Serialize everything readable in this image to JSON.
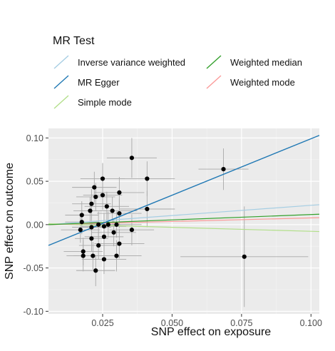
{
  "chart_data": {
    "type": "scatter",
    "legend": {
      "title": "MR Test",
      "placement": "top",
      "entries": [
        {
          "label": "Inverse variance weighted",
          "color": "#a6cee3"
        },
        {
          "label": "MR Egger",
          "color": "#1f78b4"
        },
        {
          "label": "Simple mode",
          "color": "#b2df8a"
        },
        {
          "label": "Weighted median",
          "color": "#33a02c"
        },
        {
          "label": "Weighted mode",
          "color": "#fb9a99"
        }
      ]
    },
    "xlabel": "SNP effect on exposure",
    "ylabel": "SNP effect on outcome",
    "xlim": [
      0.0055,
      0.103
    ],
    "ylim": [
      -0.103,
      0.111
    ],
    "x_ticks": [
      {
        "value": 0.025,
        "label": "0.025"
      },
      {
        "value": 0.05,
        "label": "0.050"
      },
      {
        "value": 0.075,
        "label": "0.075"
      },
      {
        "value": 0.1,
        "label": "0.100"
      }
    ],
    "y_ticks": [
      {
        "value": 0.1,
        "label": "0.10"
      },
      {
        "value": 0.05,
        "label": "0.05"
      },
      {
        "value": 0.0,
        "label": "0.00"
      },
      {
        "value": -0.05,
        "label": "-0.05"
      },
      {
        "value": -0.1,
        "label": "-0.10"
      }
    ],
    "grid": true,
    "background": "#ebebeb",
    "lines": [
      {
        "name": "Inverse variance weighted",
        "color": "#a6cee3",
        "y_at_xmin": 0.0,
        "y_at_xmax": 0.023
      },
      {
        "name": "MR Egger",
        "color": "#1f78b4",
        "y_at_xmin": -0.024,
        "y_at_xmax": 0.103
      },
      {
        "name": "Simple mode",
        "color": "#b2df8a",
        "y_at_xmin": 0.001,
        "y_at_xmax": -0.008
      },
      {
        "name": "Weighted median",
        "color": "#33a02c",
        "y_at_xmin": 0.0,
        "y_at_xmax": 0.012
      },
      {
        "name": "Weighted mode",
        "color": "#fb9a99",
        "y_at_xmin": 0.0,
        "y_at_xmax": 0.008
      }
    ],
    "points": [
      {
        "x": 0.0175,
        "y": 0.011,
        "xerr": 0.006,
        "yerr": 0.016
      },
      {
        "x": 0.0175,
        "y": 0.003,
        "xerr": 0.006,
        "yerr": 0.014
      },
      {
        "x": 0.017,
        "y": -0.006,
        "xerr": 0.007,
        "yerr": 0.015
      },
      {
        "x": 0.018,
        "y": -0.031,
        "xerr": 0.007,
        "yerr": 0.016
      },
      {
        "x": 0.018,
        "y": -0.036,
        "xerr": 0.006,
        "yerr": 0.018
      },
      {
        "x": 0.0205,
        "y": 0.016,
        "xerr": 0.006,
        "yerr": 0.016
      },
      {
        "x": 0.021,
        "y": 0.024,
        "xerr": 0.007,
        "yerr": 0.017
      },
      {
        "x": 0.021,
        "y": -0.003,
        "xerr": 0.007,
        "yerr": 0.015
      },
      {
        "x": 0.021,
        "y": -0.016,
        "xerr": 0.006,
        "yerr": 0.015
      },
      {
        "x": 0.0215,
        "y": -0.036,
        "xerr": 0.007,
        "yerr": 0.016
      },
      {
        "x": 0.022,
        "y": 0.043,
        "xerr": 0.008,
        "yerr": 0.018
      },
      {
        "x": 0.0225,
        "y": 0.032,
        "xerr": 0.007,
        "yerr": 0.016
      },
      {
        "x": 0.0225,
        "y": -0.053,
        "xerr": 0.007,
        "yerr": 0.018
      },
      {
        "x": 0.0235,
        "y": 0.0,
        "xerr": 0.008,
        "yerr": 0.015
      },
      {
        "x": 0.0235,
        "y": -0.024,
        "xerr": 0.007,
        "yerr": 0.016
      },
      {
        "x": 0.025,
        "y": 0.053,
        "xerr": 0.008,
        "yerr": 0.018
      },
      {
        "x": 0.025,
        "y": 0.034,
        "xerr": 0.007,
        "yerr": 0.017
      },
      {
        "x": 0.0255,
        "y": -0.002,
        "xerr": 0.008,
        "yerr": 0.015
      },
      {
        "x": 0.0255,
        "y": -0.014,
        "xerr": 0.007,
        "yerr": 0.016
      },
      {
        "x": 0.0255,
        "y": -0.04,
        "xerr": 0.008,
        "yerr": 0.017
      },
      {
        "x": 0.0265,
        "y": 0.021,
        "xerr": 0.008,
        "yerr": 0.017
      },
      {
        "x": 0.027,
        "y": 0.0,
        "xerr": 0.008,
        "yerr": 0.015
      },
      {
        "x": 0.0285,
        "y": 0.016,
        "xerr": 0.009,
        "yerr": 0.016
      },
      {
        "x": 0.029,
        "y": -0.009,
        "xerr": 0.008,
        "yerr": 0.016
      },
      {
        "x": 0.03,
        "y": 0.0,
        "xerr": 0.009,
        "yerr": 0.015
      },
      {
        "x": 0.03,
        "y": -0.036,
        "xerr": 0.009,
        "yerr": 0.018
      },
      {
        "x": 0.031,
        "y": 0.037,
        "xerr": 0.009,
        "yerr": 0.018
      },
      {
        "x": 0.031,
        "y": 0.013,
        "xerr": 0.008,
        "yerr": 0.017
      },
      {
        "x": 0.031,
        "y": -0.022,
        "xerr": 0.009,
        "yerr": 0.017
      },
      {
        "x": 0.0355,
        "y": 0.077,
        "xerr": 0.009,
        "yerr": 0.023
      },
      {
        "x": 0.0355,
        "y": -0.006,
        "xerr": 0.008,
        "yerr": 0.018
      },
      {
        "x": 0.041,
        "y": 0.053,
        "xerr": 0.01,
        "yerr": 0.02
      },
      {
        "x": 0.041,
        "y": 0.018,
        "xerr": 0.01,
        "yerr": 0.021
      },
      {
        "x": 0.0685,
        "y": 0.064,
        "xerr": 0.009,
        "yerr": 0.024
      },
      {
        "x": 0.076,
        "y": -0.037,
        "xerr": 0.023,
        "yerr": 0.058
      }
    ]
  }
}
